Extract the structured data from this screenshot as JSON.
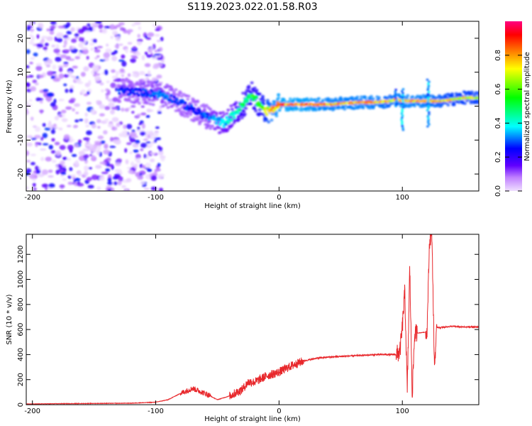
{
  "title": "S119.2023.022.01.58.R03",
  "chart_data": [
    {
      "type": "heatmap",
      "xlabel": "Height of straight line (km)",
      "ylabel": "Frequency (Hz)",
      "xlim": [
        -205,
        162
      ],
      "ylim": [
        -25,
        25
      ],
      "x_ticks": [
        -200,
        -100,
        0,
        100
      ],
      "y_ticks": [
        -20,
        -10,
        0,
        10,
        20
      ],
      "colorbar": {
        "label": "Normalized spectral amplitude",
        "range": [
          0.0,
          1.0
        ],
        "ticks": [
          0.0,
          0.2,
          0.4,
          0.6,
          0.8
        ],
        "colormap": [
          "#f0e0ff",
          "#c080ff",
          "#6000ff",
          "#0000ff",
          "#00ffff",
          "#00ff00",
          "#ffff00",
          "#ff8000",
          "#ff0000",
          "#ff0080"
        ]
      },
      "ridge": {
        "description_points_x": [
          -125,
          -110,
          -95,
          -85,
          -75,
          -65,
          -55,
          -45,
          -38,
          -30,
          -22,
          -15,
          -10,
          -5,
          0,
          20,
          40,
          60,
          80,
          90,
          95,
          100,
          110,
          120,
          130,
          140,
          150,
          160
        ],
        "frequency_hz": [
          4.5,
          4,
          3.5,
          2,
          0,
          -2,
          -3.5,
          -5,
          -3,
          0,
          3.5,
          0,
          -1.5,
          -1,
          0.5,
          0.5,
          0.5,
          1,
          1.2,
          1.5,
          2,
          1.5,
          1.5,
          1.5,
          1.5,
          2,
          2.5,
          2.5
        ],
        "amplitude": [
          0.3,
          0.3,
          0.35,
          0.3,
          0.3,
          0.3,
          0.35,
          0.4,
          0.45,
          0.55,
          0.6,
          0.65,
          0.8,
          0.9,
          0.95,
          0.95,
          0.9,
          0.9,
          0.9,
          0.85,
          0.9,
          0.9,
          0.9,
          0.9,
          0.85,
          0.8,
          0.8,
          0.8
        ]
      },
      "noise_region_km": [
        -205,
        -100
      ]
    },
    {
      "type": "line",
      "xlabel": "Height of straight line (km)",
      "ylabel": "SNR (10 * v/v)",
      "xlim": [
        -205,
        162
      ],
      "ylim": [
        0,
        1360
      ],
      "x_ticks": [
        -200,
        -100,
        0,
        100
      ],
      "y_ticks": [
        0,
        200,
        400,
        600,
        800,
        1000,
        1200
      ],
      "series": [
        {
          "color": "#e8282c",
          "x": [
            -205,
            -180,
            -150,
            -120,
            -100,
            -90,
            -80,
            -70,
            -60,
            -50,
            -40,
            -30,
            -25,
            -20,
            -10,
            0,
            10,
            20,
            30,
            40,
            50,
            60,
            70,
            80,
            90,
            95,
            98,
            100,
            102,
            104,
            106,
            108,
            110,
            115,
            120,
            122,
            124,
            126,
            128,
            130,
            140,
            150,
            160
          ],
          "y": [
            5,
            8,
            10,
            12,
            20,
            40,
            90,
            130,
            90,
            40,
            70,
            120,
            180,
            180,
            230,
            260,
            310,
            350,
            370,
            380,
            385,
            390,
            395,
            400,
            400,
            400,
            420,
            620,
            900,
            100,
            1100,
            80,
            570,
            575,
            580,
            1300,
            1360,
            300,
            620,
            615,
            625,
            620,
            620
          ]
        }
      ]
    }
  ]
}
